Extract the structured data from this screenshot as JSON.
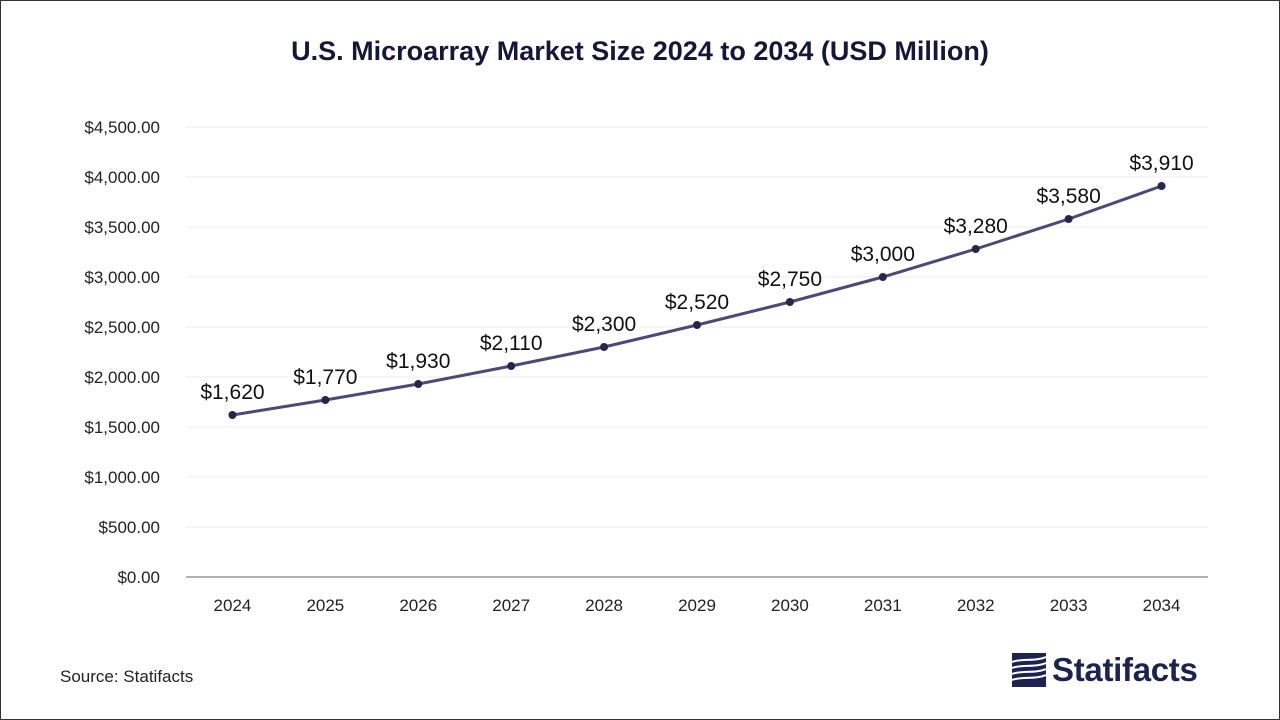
{
  "chart_data": {
    "type": "line",
    "title": "U.S. Microarray Market Size 2024 to 2034 (USD Million)",
    "categories": [
      "2024",
      "2025",
      "2026",
      "2027",
      "2028",
      "2029",
      "2030",
      "2031",
      "2032",
      "2033",
      "2034"
    ],
    "series": [
      {
        "name": "U.S. Microarray Market Size",
        "values": [
          1620,
          1770,
          1930,
          2110,
          2300,
          2520,
          2750,
          3000,
          3280,
          3580,
          3910
        ],
        "labels": [
          "$1,620",
          "$1,770",
          "$1,930",
          "$2,110",
          "$2,300",
          "$2,520",
          "$2,750",
          "$3,000",
          "$3,280",
          "$3,580",
          "$3,910"
        ]
      }
    ],
    "ylim": [
      0,
      4500
    ],
    "yticks": [
      0,
      500,
      1000,
      1500,
      2000,
      2500,
      3000,
      3500,
      4000,
      4500
    ],
    "ytick_labels": [
      "$0.00",
      "$500.00",
      "$1,000.00",
      "$1,500.00",
      "$2,000.00",
      "$2,500.00",
      "$3,000.00",
      "$3,500.00",
      "$4,000.00",
      "$4,500.00"
    ],
    "xlabel": "",
    "ylabel": "",
    "grid": true,
    "legend": "none",
    "colors": {
      "line": "#4a4a78",
      "marker": "#26264a",
      "grid": "#ececec",
      "axis": "#999999",
      "text": "#222222"
    }
  },
  "footer": {
    "source": "Source: Statifacts",
    "brand": "Statifacts"
  },
  "icons": {
    "logo": "statifacts-logo-icon"
  }
}
